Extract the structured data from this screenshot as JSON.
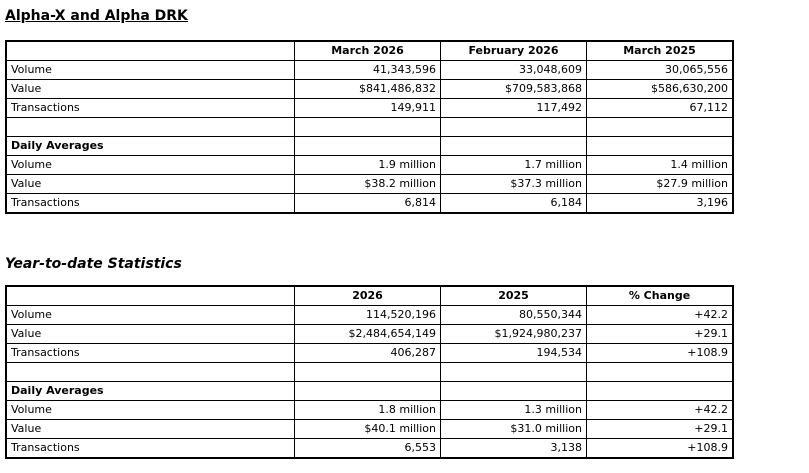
{
  "report": {
    "monthly_title": "Alpha-X and Alpha DRK",
    "ytd_title": "Year-to-date Statistics"
  },
  "monthly_table": {
    "columns": [
      "March 2026",
      "February 2026",
      "March 2025"
    ],
    "rows": [
      {
        "label": "Volume",
        "values": [
          "41,343,596",
          "33,048,609",
          "30,065,556"
        ]
      },
      {
        "label": "Value",
        "values": [
          "$841,486,832",
          "$709,583,868",
          "$586,630,200"
        ]
      },
      {
        "label": "Transactions",
        "values": [
          "149,911",
          "117,492",
          "67,112"
        ]
      },
      {
        "label": "",
        "values": [
          "",
          "",
          ""
        ]
      },
      {
        "label": "Daily Averages",
        "values": [
          "",
          "",
          ""
        ]
      },
      {
        "label": "Volume",
        "values": [
          "1.9 million",
          "1.7 million",
          "1.4 million"
        ]
      },
      {
        "label": "Value",
        "values": [
          "$38.2 million",
          "$37.3 million",
          "$27.9 million"
        ]
      },
      {
        "label": "Transactions",
        "values": [
          "6,814",
          "6,184",
          "3,196"
        ]
      }
    ]
  },
  "ytd_table": {
    "columns": [
      "2026",
      "2025",
      "% Change"
    ],
    "rows": [
      {
        "label": "Volume",
        "values": [
          "114,520,196",
          "80,550,344",
          "+42.2"
        ]
      },
      {
        "label": "Value",
        "values": [
          "$2,484,654,149",
          "$1,924,980,237",
          "+29.1"
        ]
      },
      {
        "label": "Transactions",
        "values": [
          "406,287",
          "194,534",
          "+108.9"
        ]
      },
      {
        "label": "",
        "values": [
          "",
          "",
          ""
        ]
      },
      {
        "label": "Daily Averages",
        "values": [
          "",
          "",
          ""
        ]
      },
      {
        "label": "Volume",
        "values": [
          "1.8 million",
          "1.3 million",
          "+42.2"
        ]
      },
      {
        "label": "Value",
        "values": [
          "$40.1 million",
          "$31.0 million",
          "+29.1"
        ]
      },
      {
        "label": "Transactions",
        "values": [
          "6,553",
          "3,138",
          "+108.9"
        ]
      }
    ]
  },
  "colors": {
    "text": "#000000",
    "border": "#000000",
    "background": "#ffffff"
  }
}
